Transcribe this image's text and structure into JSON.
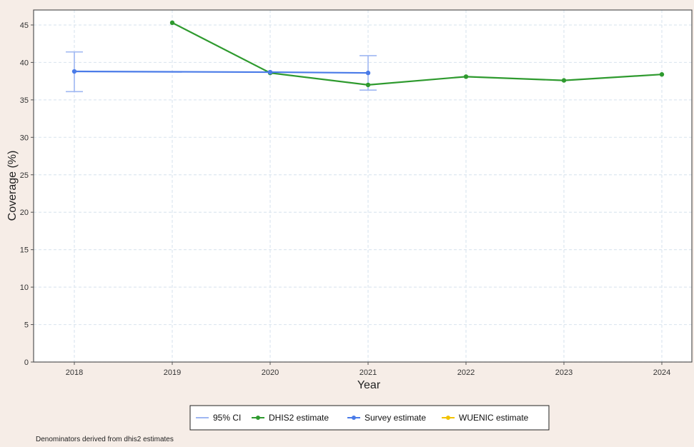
{
  "chart_data": {
    "type": "line",
    "xlabel": "Year",
    "ylabel": "Coverage (%)",
    "categories": [
      "2018",
      "2019",
      "2020",
      "2021",
      "2022",
      "2023",
      "2024"
    ],
    "ylim": [
      0,
      47
    ],
    "yticks": [
      0,
      5,
      10,
      15,
      20,
      25,
      30,
      35,
      40,
      45
    ],
    "grid": true,
    "legend_position": "bottom",
    "series": [
      {
        "name": "DHIS2 estimate",
        "color": "#2e9a2e",
        "points": [
          {
            "x": "2019",
            "y": 45.3
          },
          {
            "x": "2020",
            "y": 38.6
          },
          {
            "x": "2021",
            "y": 37.0
          },
          {
            "x": "2022",
            "y": 38.1
          },
          {
            "x": "2023",
            "y": 37.6
          },
          {
            "x": "2024",
            "y": 38.4
          }
        ]
      },
      {
        "name": "Survey estimate",
        "color": "#4a7be8",
        "points": [
          {
            "x": "2018",
            "y": 38.8,
            "ci": [
              36.1,
              41.4
            ]
          },
          {
            "x": "2020",
            "y": 38.7
          },
          {
            "x": "2021",
            "y": 38.6,
            "ci": [
              36.3,
              40.9
            ]
          }
        ]
      },
      {
        "name": "WUENIC estimate",
        "color": "#f2c200",
        "points": []
      }
    ],
    "legend": [
      {
        "label": "95% CI",
        "kind": "line",
        "color": "#9fb7f2"
      },
      {
        "label": "DHIS2 estimate",
        "kind": "line-point",
        "color": "#2e9a2e"
      },
      {
        "label": "Survey estimate",
        "kind": "line-point",
        "color": "#4a7be8"
      },
      {
        "label": "WUENIC estimate",
        "kind": "line-point",
        "color": "#f2c200"
      }
    ]
  },
  "footnote": "Denominators derived from dhis2 estimates"
}
